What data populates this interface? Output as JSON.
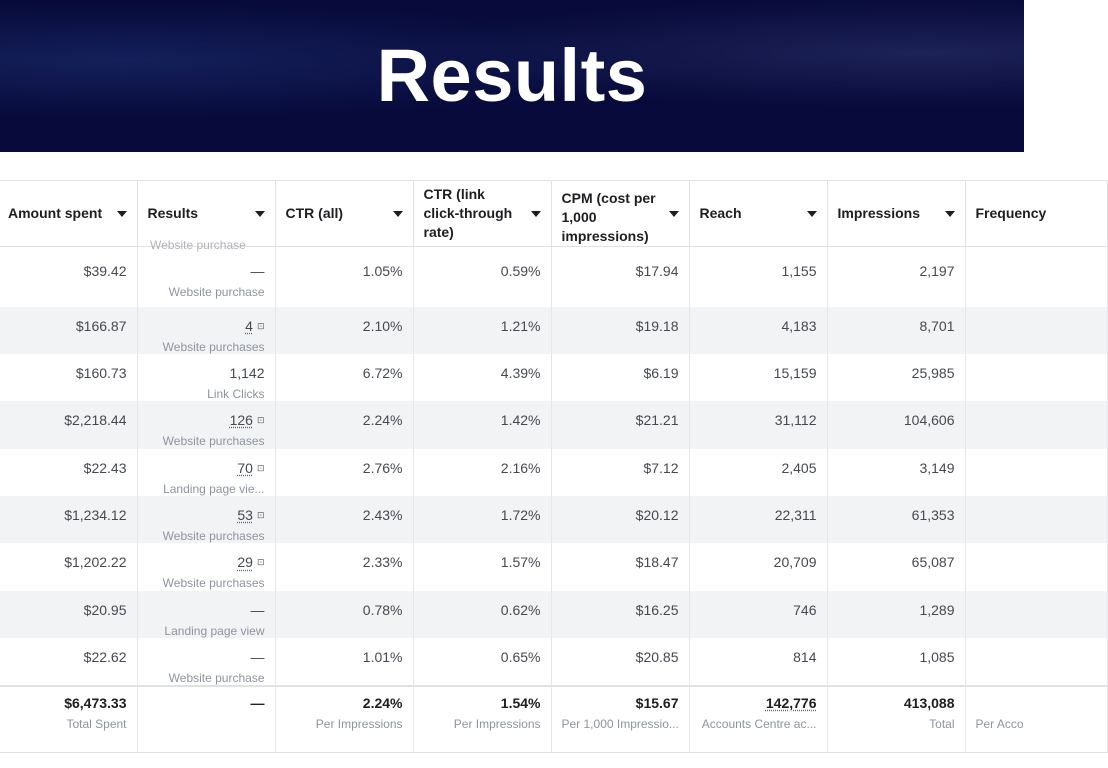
{
  "slide": {
    "title": "Results"
  },
  "table": {
    "columns": [
      "Amount spent",
      "Results",
      "CTR (all)",
      "CTR (link click-through rate)",
      "CPM (cost per 1,000 impressions)",
      "Reach",
      "Impressions",
      "Frequency"
    ],
    "clipped_top_label": "Website purchase",
    "rows": [
      {
        "amount": "$39.42",
        "result": "—",
        "result_type": "Website purchase",
        "ctr_all": "1.05%",
        "ctr_link": "0.59%",
        "cpm": "$17.94",
        "reach": "1,155",
        "impressions": "2,197"
      },
      {
        "amount": "$166.87",
        "result": "4",
        "result_type": "Website purchases",
        "ctr_all": "2.10%",
        "ctr_link": "1.21%",
        "cpm": "$19.18",
        "reach": "4,183",
        "impressions": "8,701"
      },
      {
        "amount": "$160.73",
        "result": "1,142",
        "result_type": "Link Clicks",
        "ctr_all": "6.72%",
        "ctr_link": "4.39%",
        "cpm": "$6.19",
        "reach": "15,159",
        "impressions": "25,985"
      },
      {
        "amount": "$2,218.44",
        "result": "126",
        "result_type": "Website purchases",
        "ctr_all": "2.24%",
        "ctr_link": "1.42%",
        "cpm": "$21.21",
        "reach": "31,112",
        "impressions": "104,606"
      },
      {
        "amount": "$22.43",
        "result": "70",
        "result_type": "Landing page vie...",
        "ctr_all": "2.76%",
        "ctr_link": "2.16%",
        "cpm": "$7.12",
        "reach": "2,405",
        "impressions": "3,149"
      },
      {
        "amount": "$1,234.12",
        "result": "53",
        "result_type": "Website purchases",
        "ctr_all": "2.43%",
        "ctr_link": "1.72%",
        "cpm": "$20.12",
        "reach": "22,311",
        "impressions": "61,353"
      },
      {
        "amount": "$1,202.22",
        "result": "29",
        "result_type": "Website purchases",
        "ctr_all": "2.33%",
        "ctr_link": "1.57%",
        "cpm": "$18.47",
        "reach": "20,709",
        "impressions": "65,087"
      },
      {
        "amount": "$20.95",
        "result": "—",
        "result_type": "Landing page view",
        "ctr_all": "0.78%",
        "ctr_link": "0.62%",
        "cpm": "$16.25",
        "reach": "746",
        "impressions": "1,289"
      },
      {
        "amount": "$22.62",
        "result": "—",
        "result_type": "Website purchase",
        "ctr_all": "1.01%",
        "ctr_link": "0.65%",
        "cpm": "$20.85",
        "reach": "814",
        "impressions": "1,085"
      }
    ],
    "totals": {
      "amount": "$6,473.33",
      "amount_label": "Total Spent",
      "result": "—",
      "ctr_all": "2.24%",
      "ctr_all_label": "Per Impressions",
      "ctr_link": "1.54%",
      "ctr_link_label": "Per Impressions",
      "cpm": "$15.67",
      "cpm_label": "Per 1,000 Impressio...",
      "reach": "142,776",
      "reach_label": "Accounts Centre ac...",
      "impressions": "413,088",
      "impressions_label": "Total",
      "frequency_label": "Per Acco"
    }
  }
}
